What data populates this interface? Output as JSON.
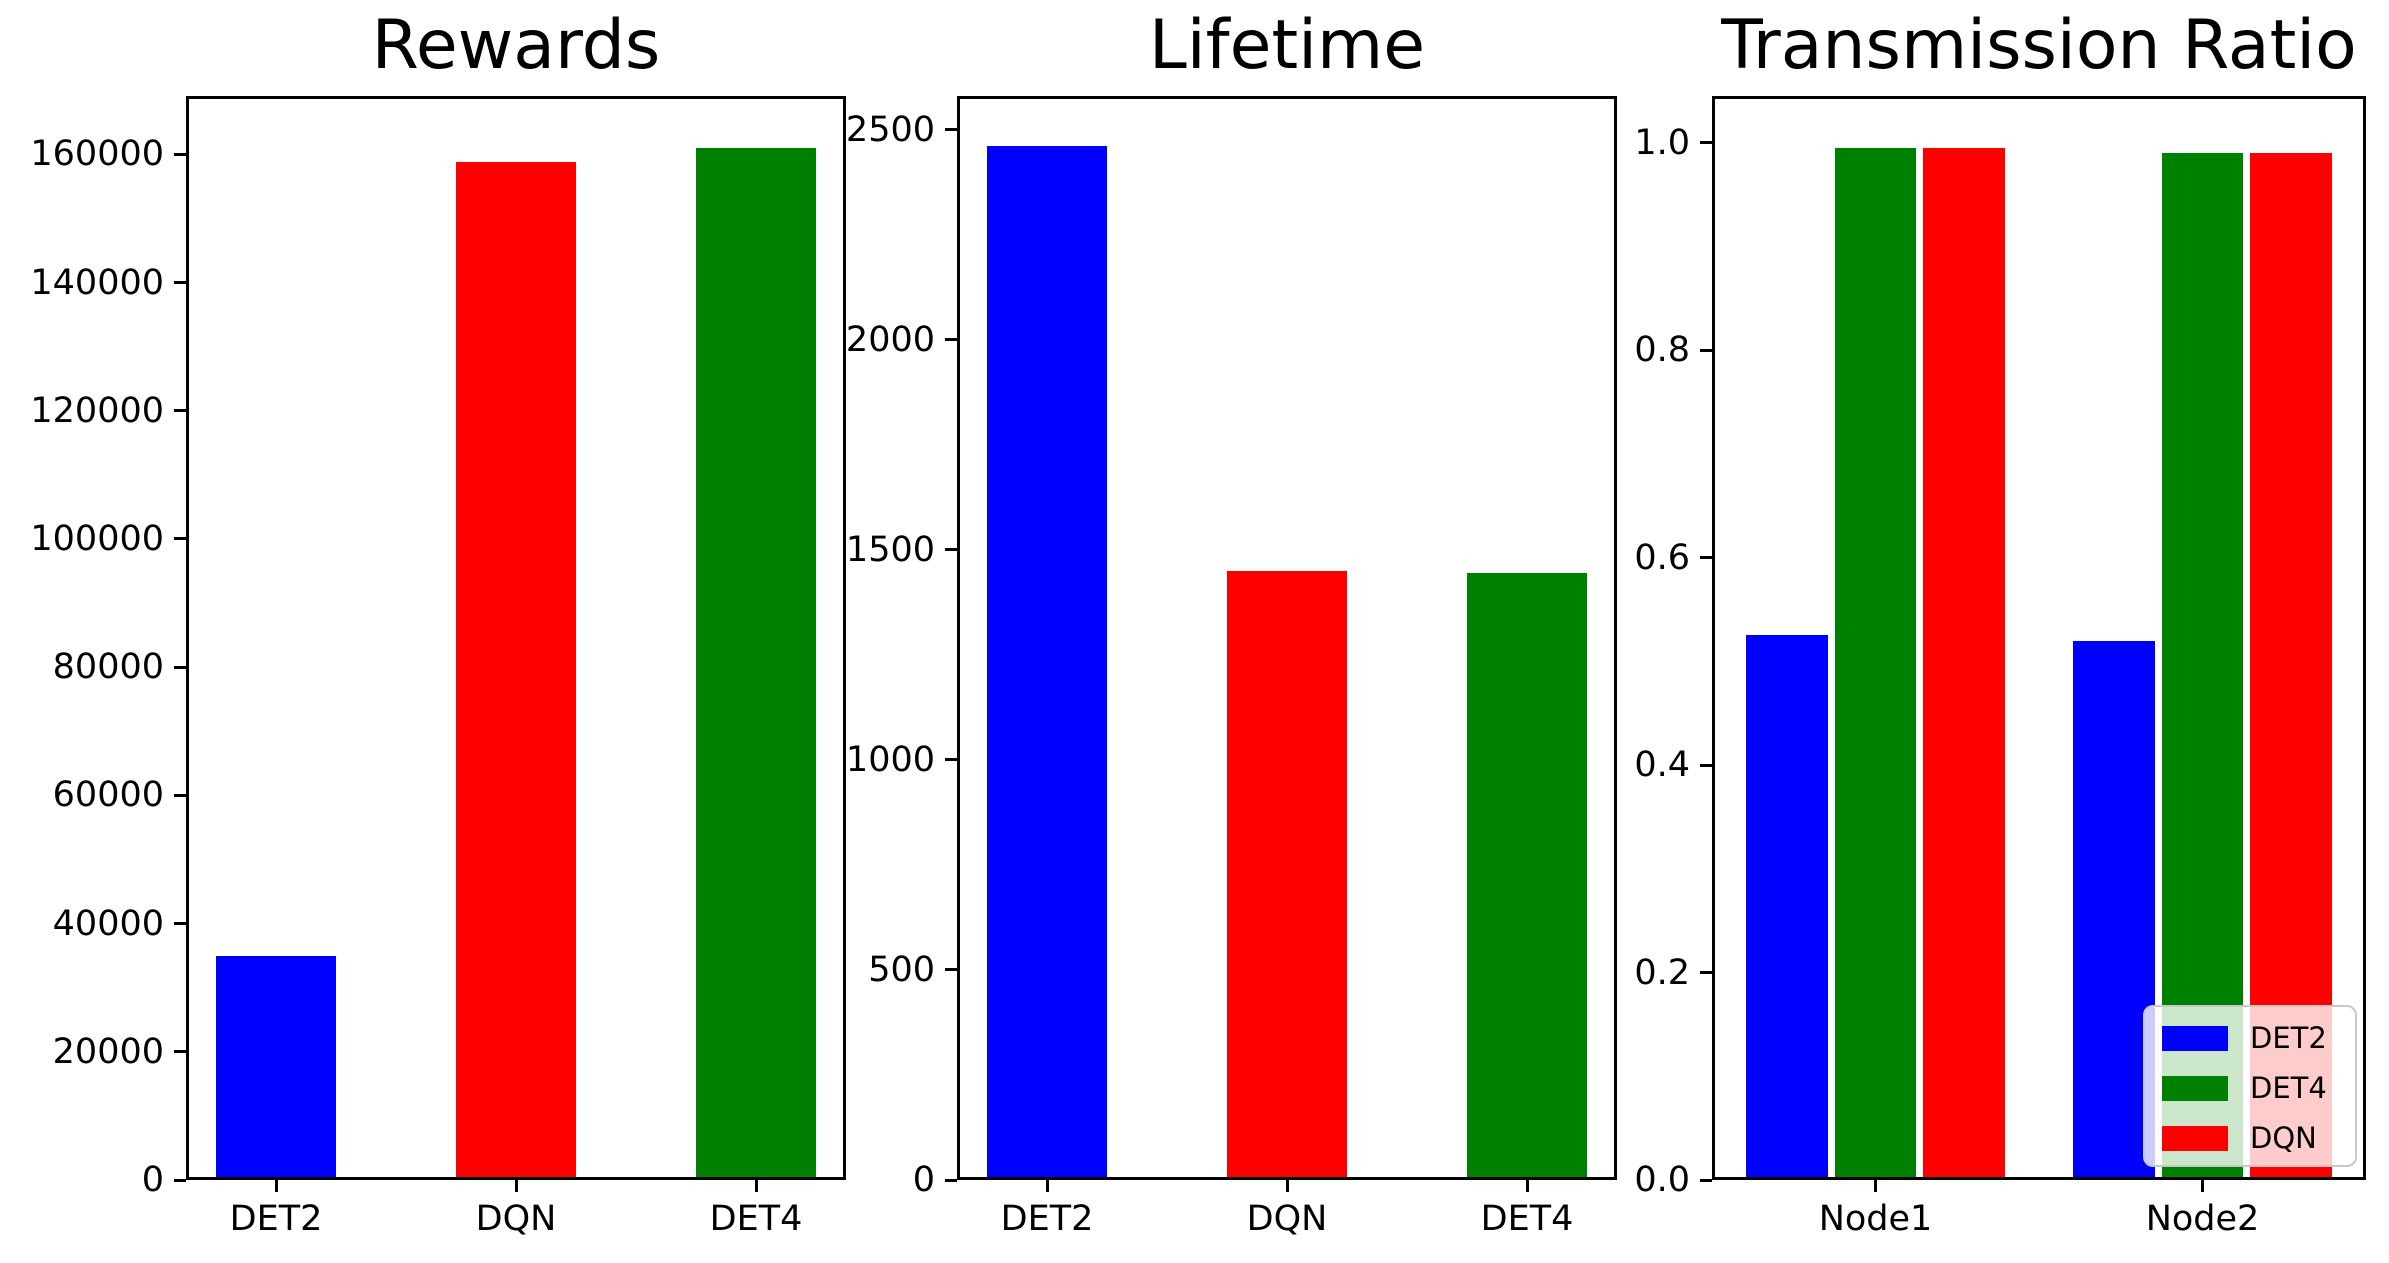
{
  "figure": {
    "background": "#ffffff",
    "axes_color": "#000000",
    "legend_border_color": "#c8c8c8"
  },
  "chart_data": [
    {
      "type": "bar",
      "title": "Rewards",
      "categories": [
        "DET2",
        "DQN",
        "DET4"
      ],
      "values": [
        35000,
        158800,
        161000
      ],
      "bar_colors": [
        "#0000ff",
        "#ff0000",
        "#008000"
      ],
      "ylim": [
        0,
        169100
      ],
      "yticks": {
        "values": [
          0,
          20000,
          40000,
          60000,
          80000,
          100000,
          120000,
          140000,
          160000
        ],
        "labels": [
          "0",
          "20000",
          "40000",
          "60000",
          "80000",
          "100000",
          "120000",
          "140000",
          "160000"
        ]
      },
      "xlabel": "",
      "ylabel": "",
      "grid": false
    },
    {
      "type": "bar",
      "title": "Lifetime",
      "categories": [
        "DET2",
        "DQN",
        "DET4"
      ],
      "values": [
        2460,
        1450,
        1445
      ],
      "bar_colors": [
        "#0000ff",
        "#ff0000",
        "#008000"
      ],
      "ylim": [
        0,
        2580
      ],
      "yticks": {
        "values": [
          0,
          500,
          1000,
          1500,
          2000,
          2500
        ],
        "labels": [
          "0",
          "500",
          "1000",
          "1500",
          "2000",
          "2500"
        ]
      },
      "xlabel": "",
      "ylabel": "",
      "grid": false
    },
    {
      "type": "bar",
      "title": "Transmission Ratio",
      "categories": [
        "Node1",
        "Node2"
      ],
      "series": [
        {
          "name": "DET2",
          "color": "#0000ff",
          "values": [
            0.525,
            0.52
          ]
        },
        {
          "name": "DET4",
          "color": "#008000",
          "values": [
            0.995,
            0.99
          ]
        },
        {
          "name": "DQN",
          "color": "#ff0000",
          "values": [
            0.995,
            0.99
          ]
        }
      ],
      "ylim": [
        0,
        1.045
      ],
      "yticks": {
        "values": [
          0.0,
          0.2,
          0.4,
          0.6,
          0.8,
          1.0
        ],
        "labels": [
          "0.0",
          "0.2",
          "0.4",
          "0.6",
          "0.8",
          "1.0"
        ]
      },
      "legend": {
        "position": "lower right",
        "entries": [
          {
            "label": "DET2",
            "color": "#0000ff"
          },
          {
            "label": "DET4",
            "color": "#008000"
          },
          {
            "label": "DQN",
            "color": "#ff0000"
          }
        ]
      },
      "xlabel": "",
      "ylabel": "",
      "grid": false
    }
  ]
}
